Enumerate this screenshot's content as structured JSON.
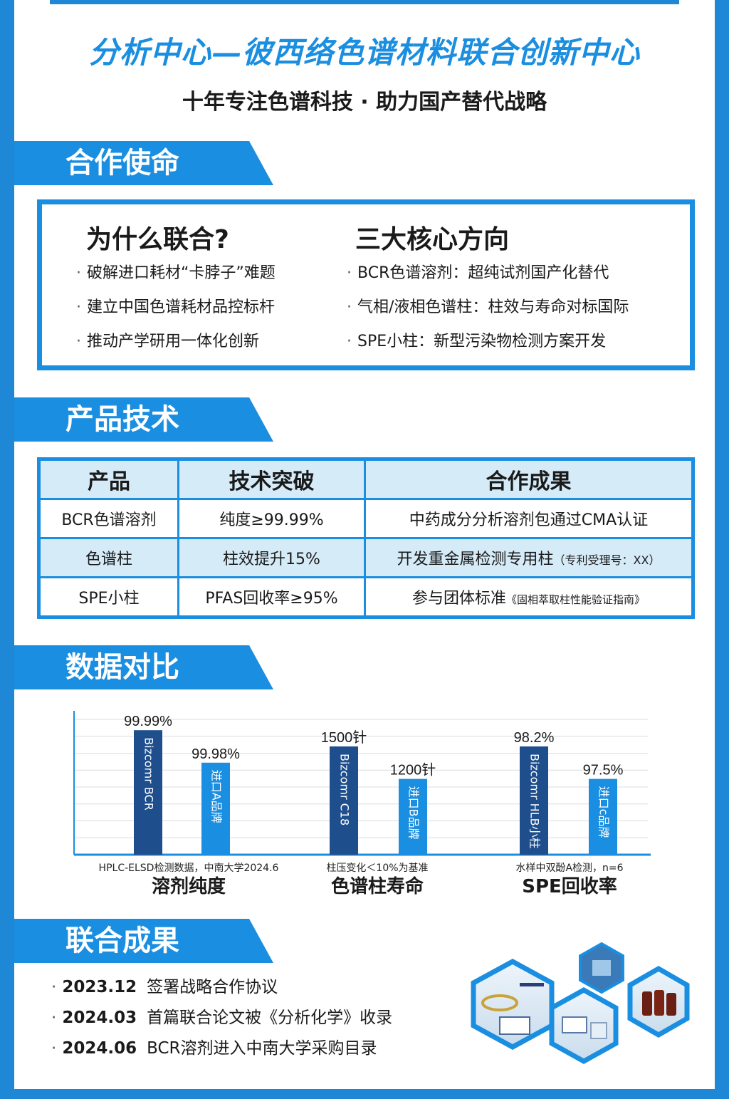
{
  "header": {
    "title": "分析中心—彼西络色谱材料联合创新中心",
    "subtitle": "十年专注色谱科技 · 助力国产替代战略"
  },
  "sections": {
    "mission": "合作使命",
    "product": "产品技术",
    "data": "数据对比",
    "results": "联合成果"
  },
  "mission": {
    "left": {
      "title": "为什么联合?",
      "items": [
        "破解进口耗材“卡脖子”难题",
        "建立中国色谱耗材品控标杆",
        "推动产学研用一体化创新"
      ]
    },
    "right": {
      "title": "三大核心方向",
      "items": [
        "BCR色谱溶剂：超纯试剂国产化替代",
        "气相/液相色谱柱：柱效与寿命对标国际",
        "SPE小柱：新型污染物检测方案开发"
      ]
    }
  },
  "table": {
    "headers": [
      "产品",
      "技术突破",
      "合作成果"
    ],
    "rows": [
      {
        "product": "BCR色谱溶剂",
        "tech": "纯度≥99.99%",
        "result": "中药成分分析溶剂包通过CMA认证",
        "note": ""
      },
      {
        "product": "色谱柱",
        "tech": "柱效提升15%",
        "result": "开发重金属检测专用柱",
        "note": "（专利受理号：XX）"
      },
      {
        "product": "SPE小柱",
        "tech": "PFAS回收率≥95%",
        "result": "参与团体标准",
        "note": "《固相萃取柱性能验证指南》"
      }
    ]
  },
  "chart_data": {
    "type": "bar",
    "colors": {
      "ours": "#1f4e8c",
      "import": "#1a8ee0"
    },
    "groups": [
      {
        "title": "溶剂纯度",
        "note": "HPLC-ELSD检测数据，中南大学2024.6",
        "bars": [
          {
            "label": "Bizcomr BCR",
            "value": "99.99%",
            "relative": 0.92,
            "kind": "ours"
          },
          {
            "label": "进口A品牌",
            "value": "99.98%",
            "relative": 0.68,
            "kind": "import"
          }
        ]
      },
      {
        "title": "色谱柱寿命",
        "note": "柱压变化＜10%为基准",
        "bars": [
          {
            "label": "Bizcomr C18",
            "value": "1500针",
            "relative": 0.8,
            "kind": "ours"
          },
          {
            "label": "进口B品牌",
            "value": "1200针",
            "relative": 0.56,
            "kind": "import"
          }
        ]
      },
      {
        "title": "SPE回收率",
        "note": "水样中双酚A检测，n=6",
        "bars": [
          {
            "label": "Bizcomr HLB小柱",
            "value": "98.2%",
            "relative": 0.8,
            "kind": "ours"
          },
          {
            "label": "进口c品牌",
            "value": "97.5%",
            "relative": 0.56,
            "kind": "import"
          }
        ]
      }
    ]
  },
  "milestones": [
    {
      "date": "2023.12",
      "text": "签署战略合作协议"
    },
    {
      "date": "2024.03",
      "text": "首篇联合论文被《分析化学》收录"
    },
    {
      "date": "2024.06",
      "text": "BCR溶剂进入中南大学采购目录"
    }
  ]
}
